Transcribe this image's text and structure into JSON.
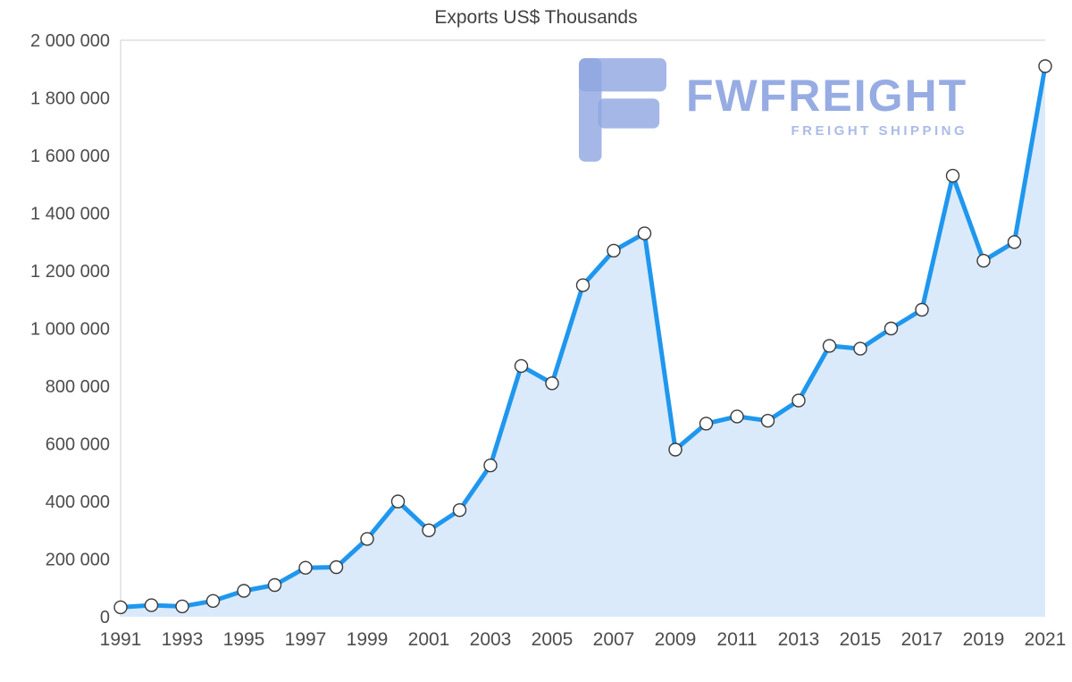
{
  "title": "Exports US$ Thousands",
  "watermark": {
    "brand": "FWFREIGHT",
    "tagline": "FREIGHT SHIPPING",
    "color": "#8fa5e1"
  },
  "chart_data": {
    "type": "area",
    "title": "Exports US$ Thousands",
    "xlabel": "",
    "ylabel": "",
    "x": [
      1991,
      1992,
      1993,
      1994,
      1995,
      1996,
      1997,
      1998,
      1999,
      2000,
      2001,
      2002,
      2003,
      2004,
      2005,
      2006,
      2007,
      2008,
      2009,
      2010,
      2011,
      2012,
      2013,
      2014,
      2015,
      2016,
      2017,
      2018,
      2019,
      2020,
      2021
    ],
    "values": [
      33000,
      40000,
      36000,
      55000,
      90000,
      110000,
      170000,
      172000,
      270000,
      400000,
      300000,
      370000,
      525000,
      870000,
      810000,
      1150000,
      1270000,
      1330000,
      580000,
      670000,
      695000,
      680000,
      750000,
      940000,
      930000,
      1000000,
      1065000,
      1530000,
      1235000,
      1300000,
      1910000
    ],
    "ylim": [
      0,
      2000000
    ],
    "y_tick_step": 200000,
    "y_tick_labels": [
      "0",
      "200 000",
      "400 000",
      "600 000",
      "800 000",
      "1 000 000",
      "1 200 000",
      "1 400 000",
      "1 600 000",
      "1 800 000",
      "2 000 000"
    ],
    "x_tick_labels": [
      "1991",
      "1993",
      "1995",
      "1997",
      "1999",
      "2001",
      "2003",
      "2005",
      "2007",
      "2009",
      "2011",
      "2013",
      "2015",
      "2017",
      "2019",
      "2021"
    ],
    "legend": "none",
    "grid": "top-border-and-left-axis-only",
    "colors": {
      "line": "#1f97ee",
      "area_fill": "#daeafa",
      "marker_fill": "#ffffff",
      "marker_stroke": "#3a3a3a",
      "axis_line": "#cfcfcf",
      "tick_label": "#4d4d4d",
      "title": "#424242"
    }
  }
}
